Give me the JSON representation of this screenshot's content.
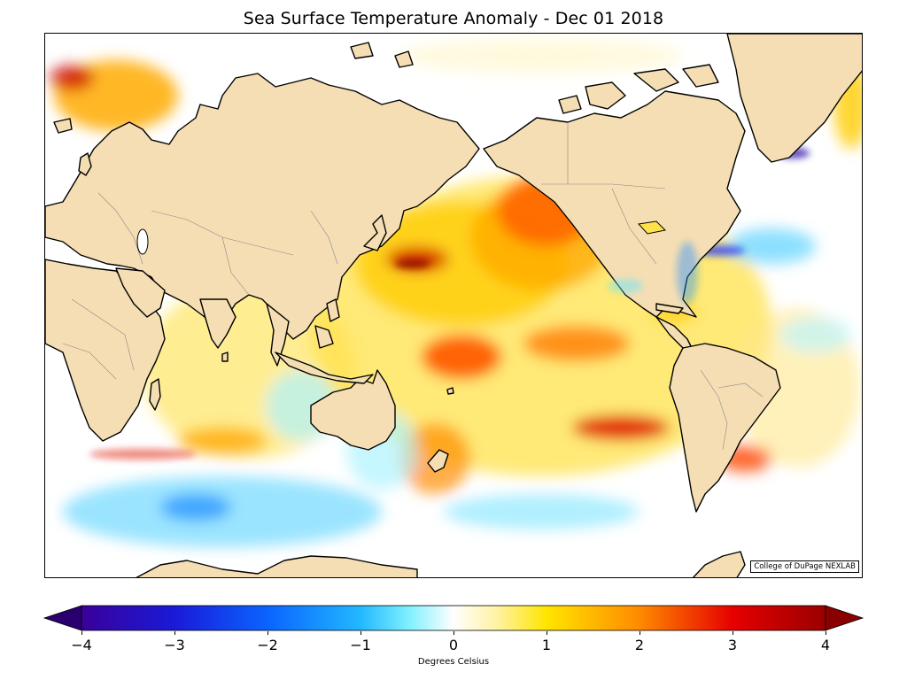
{
  "title": "Sea Surface Temperature Anomaly - Dec 01 2018",
  "credit": "College of DuPage NEXLAB",
  "colorbar": {
    "label": "Degrees Celsius",
    "min": -4,
    "max": 4,
    "ticks": [
      "−4",
      "−3",
      "−2",
      "−1",
      "0",
      "1",
      "2",
      "3",
      "4"
    ],
    "extend": "both",
    "colors": [
      "#2a0070",
      "#0a2cff",
      "#1a8cff",
      "#5fe6ff",
      "#ffffff",
      "#ffe500",
      "#ff7a00",
      "#e60000",
      "#8a0000"
    ]
  },
  "map": {
    "land_color": "#f5deb3",
    "coastline_color": "#000000",
    "border_color": "#888888",
    "projection": "mercator"
  }
}
